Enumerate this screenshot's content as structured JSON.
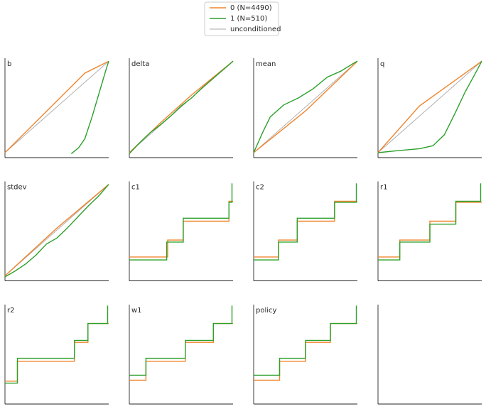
{
  "chart_data": [
    {
      "type": "line",
      "title": "b",
      "xlim": [
        0,
        1
      ],
      "ylim": [
        0,
        1
      ],
      "series": [
        {
          "name": "0 (N=4490)",
          "color": "#f0852d",
          "x": [
            0,
            0.77,
            1
          ],
          "values": [
            0.05,
            0.85,
            0.97
          ]
        },
        {
          "name": "1 (N=510)",
          "color": "#2ca02c",
          "x": [
            0.64,
            0.71,
            0.77,
            0.84,
            0.91,
            0.97,
            1
          ],
          "values": [
            0.04,
            0.1,
            0.19,
            0.41,
            0.66,
            0.87,
            0.97
          ]
        },
        {
          "name": "unconditioned",
          "color": "#aaaaaa",
          "x": [
            0,
            1
          ],
          "values": [
            0.05,
            0.97
          ]
        }
      ]
    },
    {
      "type": "line",
      "title": "delta",
      "xlim": [
        0,
        1
      ],
      "ylim": [
        0,
        1
      ],
      "series": [
        {
          "color": "#f0852d",
          "x": [
            0,
            0.3,
            0.6,
            1
          ],
          "values": [
            0.05,
            0.35,
            0.63,
            0.97
          ]
        },
        {
          "color": "#2ca02c",
          "x": [
            0,
            0.1,
            0.2,
            0.3,
            0.4,
            0.5,
            0.6,
            0.7,
            0.8,
            0.9,
            1
          ],
          "values": [
            0.04,
            0.15,
            0.25,
            0.33,
            0.42,
            0.52,
            0.6,
            0.7,
            0.79,
            0.88,
            0.97
          ]
        },
        {
          "color": "#aaaaaa",
          "x": [
            0,
            1
          ],
          "values": [
            0.05,
            0.97
          ]
        }
      ]
    },
    {
      "type": "line",
      "title": "mean",
      "xlim": [
        0,
        1
      ],
      "ylim": [
        0,
        1
      ],
      "series": [
        {
          "color": "#f0852d",
          "x": [
            0,
            0.5,
            1
          ],
          "values": [
            0.05,
            0.47,
            0.97
          ]
        },
        {
          "color": "#2ca02c",
          "x": [
            0,
            0.09,
            0.16,
            0.29,
            0.43,
            0.57,
            0.71,
            0.84,
            0.98,
            1
          ],
          "values": [
            0.05,
            0.26,
            0.41,
            0.53,
            0.6,
            0.69,
            0.81,
            0.87,
            0.96,
            0.97
          ]
        },
        {
          "color": "#aaaaaa",
          "x": [
            0,
            1
          ],
          "values": [
            0.05,
            0.97
          ]
        }
      ]
    },
    {
      "type": "line",
      "title": "q",
      "xlim": [
        0,
        1
      ],
      "ylim": [
        0,
        1
      ],
      "series": [
        {
          "color": "#f0852d",
          "x": [
            0,
            0.4,
            1
          ],
          "values": [
            0.05,
            0.52,
            0.97
          ]
        },
        {
          "color": "#2ca02c",
          "x": [
            0,
            0.19,
            0.4,
            0.53,
            0.64,
            0.74,
            0.84,
            0.95,
            1
          ],
          "values": [
            0.05,
            0.07,
            0.09,
            0.12,
            0.23,
            0.44,
            0.66,
            0.87,
            0.97
          ]
        },
        {
          "color": "#aaaaaa",
          "x": [
            0,
            1
          ],
          "values": [
            0.05,
            0.97
          ]
        }
      ]
    },
    {
      "type": "line",
      "title": "stdev",
      "xlim": [
        0,
        1
      ],
      "ylim": [
        0,
        1
      ],
      "series": [
        {
          "color": "#f0852d",
          "x": [
            0,
            0.5,
            1
          ],
          "values": [
            0.05,
            0.53,
            0.97
          ]
        },
        {
          "color": "#2ca02c",
          "x": [
            0,
            0.1,
            0.2,
            0.3,
            0.4,
            0.5,
            0.6,
            0.7,
            0.8,
            0.9,
            1
          ],
          "values": [
            0.04,
            0.1,
            0.17,
            0.26,
            0.37,
            0.43,
            0.53,
            0.64,
            0.75,
            0.85,
            0.97
          ]
        },
        {
          "color": "#aaaaaa",
          "x": [
            0,
            1
          ],
          "values": [
            0.05,
            0.97
          ]
        }
      ]
    },
    {
      "type": "line",
      "title": "c1",
      "xlim": [
        0,
        1
      ],
      "ylim": [
        0,
        1
      ],
      "series": [
        {
          "color": "#f0852d",
          "x": [
            0,
            0.37,
            0.37,
            0.52,
            0.52,
            0.96,
            0.96,
            1
          ],
          "values": [
            0.24,
            0.24,
            0.41,
            0.41,
            0.6,
            0.6,
            0.8,
            0.8
          ]
        },
        {
          "color": "#2ca02c",
          "x": [
            0,
            0.36,
            0.36,
            0.52,
            0.52,
            0.96,
            0.96,
            0.99,
            0.99
          ],
          "values": [
            0.21,
            0.21,
            0.39,
            0.39,
            0.63,
            0.63,
            0.79,
            0.79,
            0.98
          ]
        }
      ]
    },
    {
      "type": "line",
      "title": "c2",
      "xlim": [
        0,
        1
      ],
      "ylim": [
        0,
        1
      ],
      "series": [
        {
          "color": "#f0852d",
          "x": [
            0,
            0.24,
            0.24,
            0.42,
            0.42,
            0.78,
            0.78,
            1
          ],
          "values": [
            0.24,
            0.24,
            0.41,
            0.41,
            0.6,
            0.6,
            0.8,
            0.8
          ]
        },
        {
          "color": "#2ca02c",
          "x": [
            0,
            0.24,
            0.24,
            0.42,
            0.42,
            0.78,
            0.78,
            0.99,
            0.99
          ],
          "values": [
            0.21,
            0.21,
            0.39,
            0.39,
            0.63,
            0.63,
            0.79,
            0.79,
            0.98
          ]
        }
      ]
    },
    {
      "type": "line",
      "title": "r1",
      "xlim": [
        0,
        1
      ],
      "ylim": [
        0,
        1
      ],
      "series": [
        {
          "color": "#f0852d",
          "x": [
            0,
            0.21,
            0.21,
            0.5,
            0.5,
            0.75,
            0.75,
            1
          ],
          "values": [
            0.24,
            0.24,
            0.41,
            0.41,
            0.6,
            0.6,
            0.79,
            0.79
          ]
        },
        {
          "color": "#2ca02c",
          "x": [
            0,
            0.21,
            0.21,
            0.5,
            0.5,
            0.75,
            0.75,
            0.99,
            0.99
          ],
          "values": [
            0.21,
            0.21,
            0.39,
            0.39,
            0.57,
            0.57,
            0.8,
            0.8,
            0.98
          ]
        }
      ]
    },
    {
      "type": "line",
      "title": "r2",
      "xlim": [
        0,
        1
      ],
      "ylim": [
        0,
        1
      ],
      "series": [
        {
          "color": "#f0852d",
          "x": [
            0,
            0.12,
            0.12,
            0.67,
            0.67,
            0.8,
            0.8,
            1
          ],
          "values": [
            0.23,
            0.23,
            0.43,
            0.43,
            0.62,
            0.62,
            0.81,
            0.81
          ]
        },
        {
          "color": "#2ca02c",
          "x": [
            0,
            0.12,
            0.12,
            0.67,
            0.67,
            0.8,
            0.8,
            0.99,
            0.99
          ],
          "values": [
            0.21,
            0.21,
            0.46,
            0.46,
            0.64,
            0.64,
            0.81,
            0.81,
            0.99
          ]
        }
      ]
    },
    {
      "type": "line",
      "title": "w1",
      "xlim": [
        0,
        1
      ],
      "ylim": [
        0,
        1
      ],
      "series": [
        {
          "color": "#f0852d",
          "x": [
            0,
            0.16,
            0.16,
            0.54,
            0.54,
            0.81,
            0.81,
            1
          ],
          "values": [
            0.24,
            0.24,
            0.43,
            0.43,
            0.62,
            0.62,
            0.81,
            0.81
          ]
        },
        {
          "color": "#2ca02c",
          "x": [
            0,
            0.16,
            0.16,
            0.54,
            0.54,
            0.81,
            0.81,
            0.99,
            0.99
          ],
          "values": [
            0.29,
            0.29,
            0.46,
            0.46,
            0.64,
            0.64,
            0.81,
            0.81,
            0.99
          ]
        }
      ]
    },
    {
      "type": "line",
      "title": "policy",
      "xlim": [
        0,
        1
      ],
      "ylim": [
        0,
        1
      ],
      "series": [
        {
          "color": "#f0852d",
          "x": [
            0,
            0.25,
            0.25,
            0.5,
            0.5,
            0.74,
            0.74,
            1
          ],
          "values": [
            0.24,
            0.24,
            0.43,
            0.43,
            0.62,
            0.62,
            0.81,
            0.81
          ]
        },
        {
          "color": "#2ca02c",
          "x": [
            0,
            0.25,
            0.25,
            0.5,
            0.5,
            0.74,
            0.74,
            0.99,
            0.99
          ],
          "values": [
            0.29,
            0.29,
            0.46,
            0.46,
            0.64,
            0.64,
            0.81,
            0.81,
            0.99
          ]
        }
      ]
    }
  ]
}
